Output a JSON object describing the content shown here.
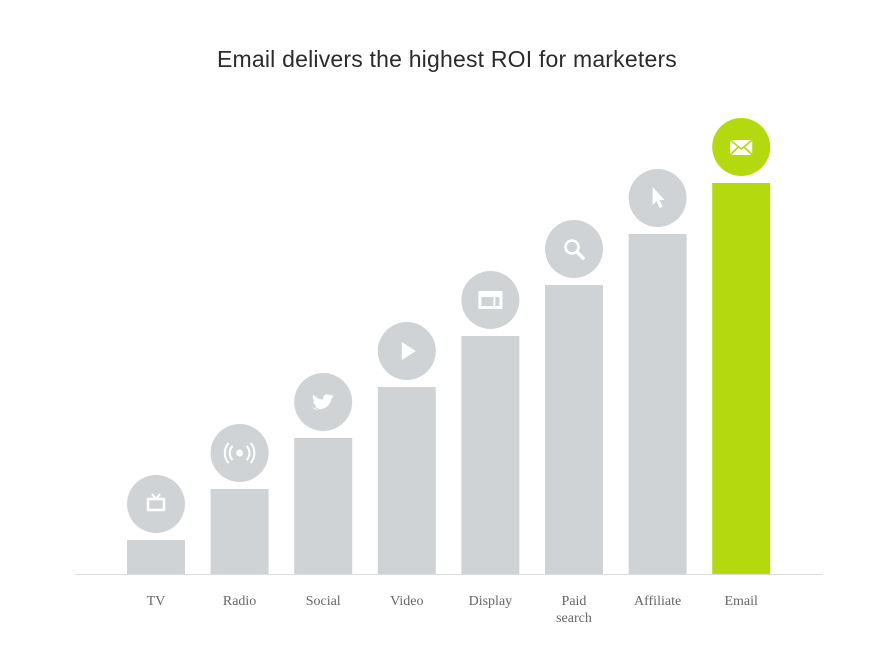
{
  "chart_data": {
    "type": "bar",
    "title": "Email delivers the highest ROI for marketers",
    "xlabel": "",
    "ylabel": "",
    "ylim": [
      0,
      11.5
    ],
    "grid": false,
    "categories": [
      "TV",
      "Radio",
      "Social",
      "Video",
      "Display",
      "Paid search",
      "Affiliate",
      "Email"
    ],
    "label_lines": [
      [
        "TV"
      ],
      [
        "Radio"
      ],
      [
        "Social"
      ],
      [
        "Video"
      ],
      [
        "Display"
      ],
      [
        "Paid",
        "search"
      ],
      [
        "Affiliate"
      ],
      [
        "Email"
      ]
    ],
    "values": [
      1,
      2.5,
      4,
      5.5,
      7,
      8.5,
      10,
      11.5
    ],
    "icons": [
      "tv-icon",
      "radio-icon",
      "twitter-icon",
      "play-icon",
      "display-icon",
      "search-icon",
      "cursor-icon",
      "email-icon"
    ],
    "highlight": "Email"
  },
  "colors": {
    "bar": "#d0d3d6",
    "highlight": "#b5d90f",
    "axis": "#dcdcdc",
    "icon": "#ffffff"
  }
}
